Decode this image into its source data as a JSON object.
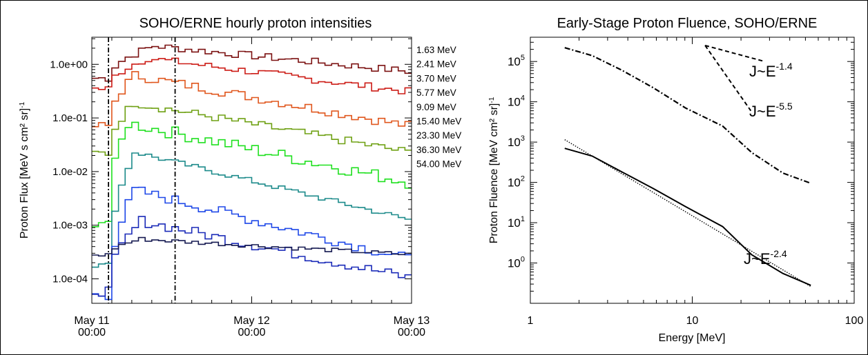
{
  "chart_data": [
    {
      "type": "line",
      "title": "SOHO/ERNE hourly proton intensities",
      "ylabel": "Proton Flux [MeV s cm² sr]",
      "ylabel_sup": "-1",
      "ylog": true,
      "ylim": [
        3.5e-05,
        3.2
      ],
      "xlim_hours": [
        0,
        48
      ],
      "x_ticks": [
        {
          "h": 0,
          "l1": "May 11",
          "l2": "00:00"
        },
        {
          "h": 24,
          "l1": "May 12",
          "l2": "00:00"
        },
        {
          "h": 48,
          "l1": "May 13",
          "l2": "00:00"
        }
      ],
      "y_tick_labels": [
        {
          "v": 1.0,
          "label": "1.0e+00"
        },
        {
          "v": 0.1,
          "label": "1.0e-01"
        },
        {
          "v": 0.01,
          "label": "1.0e-02"
        },
        {
          "v": 0.001,
          "label": "1.0e-03"
        },
        {
          "v": 0.0001,
          "label": "1.0e-04"
        }
      ],
      "vlines_hours": [
        2.5,
        12.5
      ],
      "series": [
        {
          "name": "1.63 MeV",
          "color": "#7b1010",
          "pre": 0.55,
          "peak": 2.2,
          "peak_h": 9,
          "end": 0.72,
          "noise": 0.07
        },
        {
          "name": "2.41 MeV",
          "color": "#cc1a14",
          "pre": 0.35,
          "peak": 1.3,
          "peak_h": 8,
          "end": 0.3,
          "noise": 0.07
        },
        {
          "name": "3.70 MeV",
          "color": "#e0561c",
          "pre": 0.07,
          "peak": 0.62,
          "peak_h": 6,
          "end": 0.068,
          "noise": 0.09
        },
        {
          "name": "5.77 MeV",
          "color": "#6ea012",
          "pre": 0.022,
          "peak": 0.19,
          "peak_h": 6,
          "end": 0.022,
          "noise": 0.08
        },
        {
          "name": "9.09 MeV",
          "color": "#1ee01e",
          "pre": 0.0012,
          "peak": 0.08,
          "peak_h": 5,
          "end": 0.006,
          "noise": 0.12
        },
        {
          "name": "15.40 MeV",
          "color": "#1b8a8a",
          "pre": 0.00018,
          "peak": 0.023,
          "peak_h": 6,
          "end": 0.0012,
          "noise": 0.05
        },
        {
          "name": "23.30 MeV",
          "color": "#1d47e8",
          "pre": 5e-05,
          "peak": 0.0045,
          "peak_h": 6,
          "end": 0.00022,
          "noise": 0.1
        },
        {
          "name": "36.30 MeV",
          "color": "#1a2ab8",
          "pre": 6e-05,
          "peak": 0.0012,
          "peak_h": 7,
          "end": 0.0001,
          "noise": 0.1
        },
        {
          "name": "54.00 MeV",
          "color": "#141850",
          "pre": 0.00028,
          "peak": 0.00055,
          "peak_h": 7,
          "end": 0.00028,
          "noise": 0.04
        }
      ]
    },
    {
      "type": "line",
      "title": "Early-Stage Proton Fluence, SOHO/ERNE",
      "xlabel": "Energy [MeV]",
      "ylabel": "Proton Fluence [MeV cm² sr]",
      "ylabel_sup": "-1",
      "xlog": true,
      "ylog": true,
      "xlim": [
        1,
        100
      ],
      "ylim": [
        0.1,
        400000
      ],
      "x_ticks": [
        {
          "v": 1,
          "label": "1"
        },
        {
          "v": 10,
          "label": "10"
        },
        {
          "v": 100,
          "label": "100"
        }
      ],
      "y_ticks": [
        {
          "v": 1,
          "base": "10",
          "exp": "0"
        },
        {
          "v": 10,
          "base": "10",
          "exp": "1"
        },
        {
          "v": 100,
          "base": "10",
          "exp": "2"
        },
        {
          "v": 1000,
          "base": "10",
          "exp": "3"
        },
        {
          "v": 10000,
          "base": "10",
          "exp": "4"
        },
        {
          "v": 100000,
          "base": "10",
          "exp": "5"
        }
      ],
      "series": [
        {
          "style": "dashdot",
          "x": [
            1.63,
            2.41,
            3.7,
            5.77,
            9.09,
            15.4,
            23.3,
            36.3,
            54.0
          ],
          "y": [
            220000,
            140000,
            60000,
            22000,
            7000,
            2500,
            550,
            170,
            95
          ]
        },
        {
          "style": "solid",
          "x": [
            1.63,
            2.41,
            3.7,
            5.77,
            9.09,
            15.4,
            23.3,
            36.3,
            54.0
          ],
          "y": [
            700,
            450,
            180,
            70,
            25,
            8,
            1.6,
            0.55,
            0.28
          ]
        },
        {
          "style": "dotted",
          "x": [
            1.63,
            54.0
          ],
          "y": [
            1150,
            0.26
          ]
        }
      ],
      "power_law_guides": [
        {
          "text": "J~E",
          "exp": "-1.4",
          "x": [
            12,
            28
          ],
          "y": [
            250000,
            100000
          ]
        },
        {
          "text": "J~E",
          "exp": "-5.5",
          "x": [
            12,
            23
          ],
          "y": [
            250000,
            6000
          ]
        },
        {
          "text": "J~E",
          "exp": "-2.4"
        }
      ]
    }
  ]
}
